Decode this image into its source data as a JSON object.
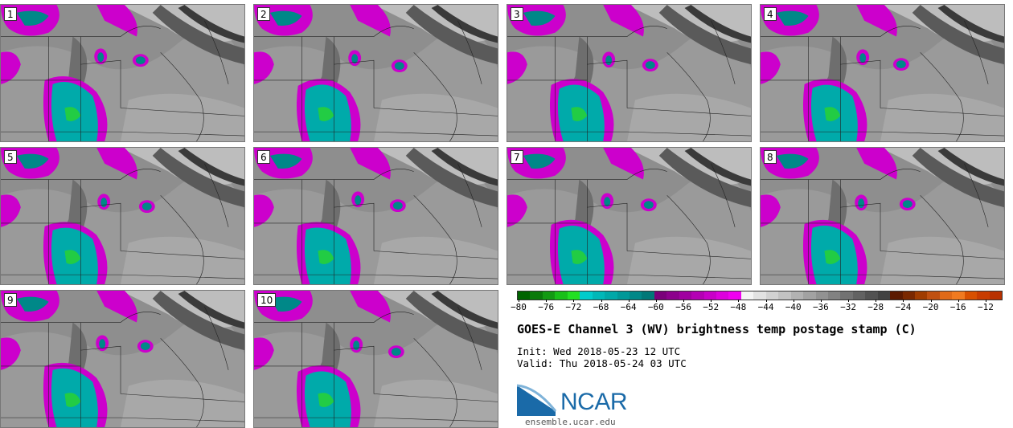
{
  "figure": {
    "title": "GOES-E Channel 3 (WV) brightness temp postage stamp (C)",
    "init_label": "Init:",
    "init_value": "Wed 2018-05-23 12 UTC",
    "valid_label": "Valid:",
    "valid_value": "Thu 2018-05-24 03 UTC",
    "logo_text": "NCAR",
    "logo_url": "ensemble.ucar.edu"
  },
  "panels": [
    {
      "label": "1"
    },
    {
      "label": "2"
    },
    {
      "label": "3"
    },
    {
      "label": "4"
    },
    {
      "label": "5"
    },
    {
      "label": "6"
    },
    {
      "label": "7"
    },
    {
      "label": "8"
    },
    {
      "label": "9"
    },
    {
      "label": "10"
    }
  ],
  "colorbar": {
    "ticks": [
      "−80",
      "−76",
      "−72",
      "−68",
      "−64",
      "−60",
      "−56",
      "−52",
      "−48",
      "−44",
      "−40",
      "−36",
      "−32",
      "−28",
      "−24",
      "−20",
      "−16",
      "−12"
    ],
    "colors": [
      "#006400",
      "#0a7a0a",
      "#129a12",
      "#18c018",
      "#22e022",
      "#00cccc",
      "#00b8b8",
      "#00a8a8",
      "#009898",
      "#008888",
      "#007878",
      "#7a007a",
      "#8c008c",
      "#a000a0",
      "#b400b4",
      "#c800c8",
      "#dd00dd",
      "#f000f0",
      "#f4f4f4",
      "#e2e2e2",
      "#d2d2d2",
      "#c2c2c2",
      "#b2b2b2",
      "#a2a2a2",
      "#929292",
      "#828282",
      "#727272",
      "#626262",
      "#525252",
      "#424242",
      "#5c1a00",
      "#7a2800",
      "#a03c00",
      "#c05010",
      "#e06a18",
      "#f07a20",
      "#d85000",
      "#c83c00",
      "#b83000"
    ]
  }
}
